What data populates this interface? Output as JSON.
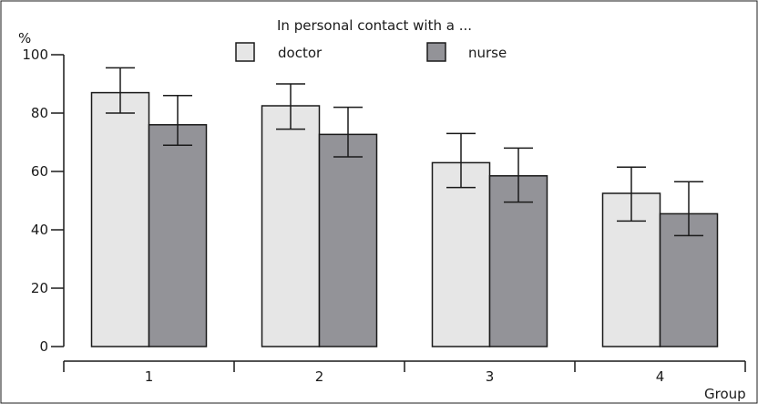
{
  "chart_data": {
    "type": "bar",
    "title": "In personal contact with a ...",
    "xlabel": "Group",
    "ylabel": "%",
    "categories": [
      "1",
      "2",
      "3",
      "4"
    ],
    "series": [
      {
        "name": "doctor",
        "color": "#e6e6e6",
        "values": [
          87,
          82.5,
          63,
          52.5
        ],
        "error_low": [
          80,
          74.5,
          54.5,
          43
        ],
        "error_high": [
          95.5,
          90,
          73,
          61.5
        ]
      },
      {
        "name": "nurse",
        "color": "#939398",
        "values": [
          76,
          72.7,
          58.5,
          45.5
        ],
        "error_low": [
          69,
          65,
          49.5,
          38
        ],
        "error_high": [
          86,
          82,
          68,
          56.5
        ]
      }
    ],
    "ylim": [
      0,
      100
    ],
    "yticks": [
      0,
      20,
      40,
      60,
      80,
      100
    ],
    "grid": false,
    "legend": "top-center",
    "error_bars": true
  }
}
